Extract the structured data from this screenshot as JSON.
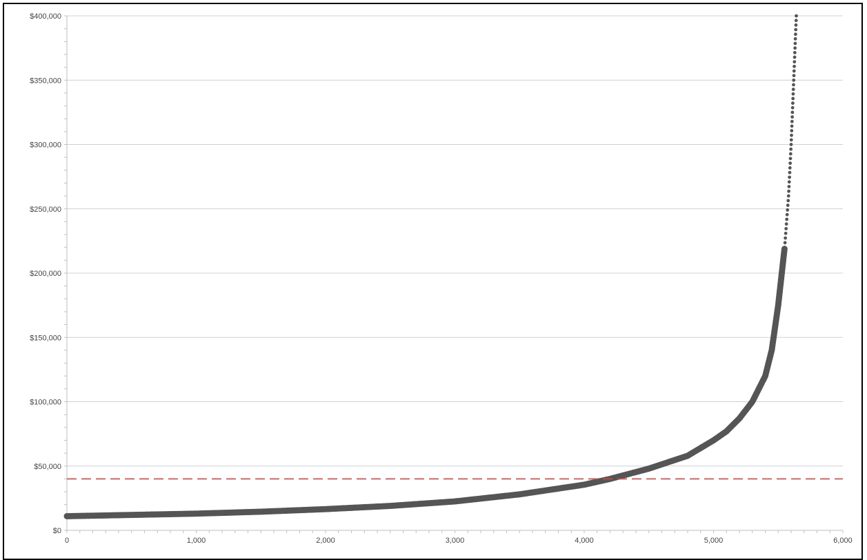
{
  "chart_data": {
    "type": "scatter",
    "title": "",
    "xlabel": "",
    "ylabel": "",
    "xlim": [
      0,
      6000
    ],
    "ylim": [
      0,
      400000
    ],
    "x_ticks": [
      "0",
      "1,000",
      "2,000",
      "3,000",
      "4,000",
      "5,000",
      "6,000"
    ],
    "y_ticks": [
      "$0",
      "$50,000",
      "$100,000",
      "$150,000",
      "$200,000",
      "$250,000",
      "$300,000",
      "$350,000",
      "$400,000"
    ],
    "grid": "horizontal",
    "legend": "none",
    "reference_line": {
      "y": 40000,
      "style": "dashed",
      "color": "#c0504d"
    },
    "series": [
      {
        "color": "#555555",
        "points": [
          [
            0,
            11000
          ],
          [
            500,
            12000
          ],
          [
            1000,
            13000
          ],
          [
            1500,
            14500
          ],
          [
            2000,
            16500
          ],
          [
            2500,
            19000
          ],
          [
            3000,
            22500
          ],
          [
            3500,
            28000
          ],
          [
            4000,
            35500
          ],
          [
            4200,
            40000
          ],
          [
            4500,
            48000
          ],
          [
            4800,
            58000
          ],
          [
            5000,
            70000
          ],
          [
            5100,
            77000
          ],
          [
            5200,
            87000
          ],
          [
            5300,
            100000
          ],
          [
            5400,
            120000
          ],
          [
            5450,
            140000
          ],
          [
            5500,
            175000
          ],
          [
            5550,
            220000
          ],
          [
            5580,
            260000
          ],
          [
            5600,
            300000
          ],
          [
            5620,
            350000
          ],
          [
            5640,
            400000
          ]
        ]
      }
    ]
  }
}
